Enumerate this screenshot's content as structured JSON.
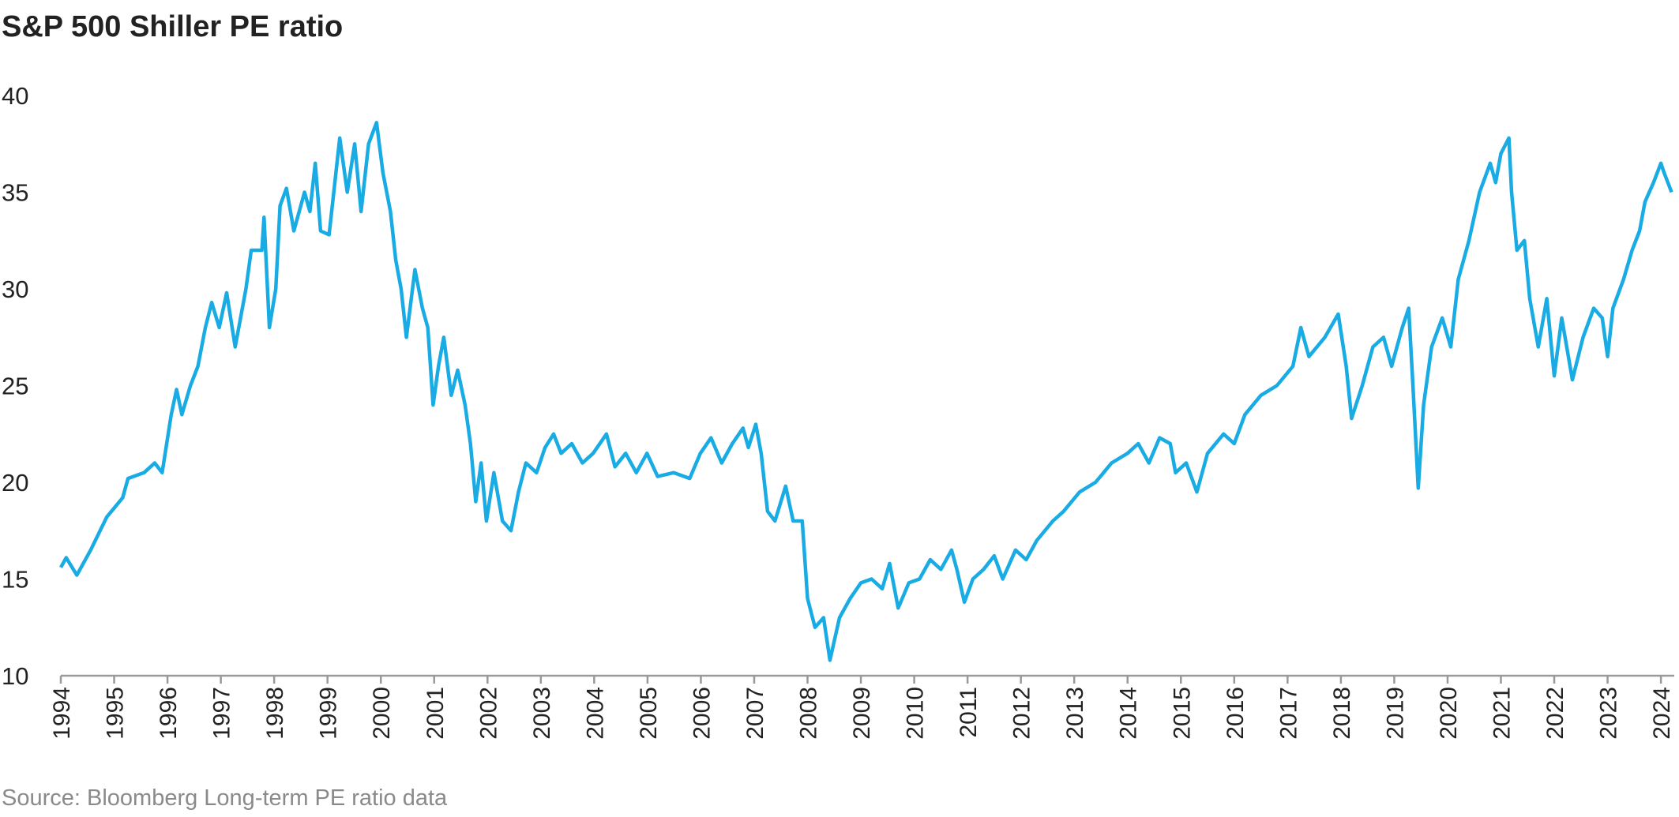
{
  "chart_data": {
    "type": "line",
    "title": "S&P 500 Shiller PE ratio",
    "source": "Source: Bloomberg Long-term PE ratio data",
    "x": [
      1994.0,
      1994.1,
      1994.3,
      1994.56,
      1994.86,
      1995.16,
      1995.26,
      1995.56,
      1995.76,
      1995.9,
      1996.07,
      1996.17,
      1996.27,
      1996.43,
      1996.57,
      1996.71,
      1996.83,
      1996.97,
      1997.11,
      1997.27,
      1997.47,
      1997.57,
      1997.77,
      1997.81,
      1997.91,
      1998.03,
      1998.11,
      1998.23,
      1998.37,
      1998.57,
      1998.67,
      1998.77,
      1998.87,
      1999.03,
      1999.23,
      1999.37,
      1999.51,
      1999.63,
      1999.77,
      1999.92,
      2000.04,
      2000.18,
      2000.28,
      2000.38,
      2000.48,
      2000.64,
      2000.78,
      2000.88,
      2000.98,
      2001.08,
      2001.18,
      2001.32,
      2001.44,
      2001.58,
      2001.68,
      2001.78,
      2001.88,
      2001.98,
      2002.12,
      2002.28,
      2002.44,
      2002.58,
      2002.72,
      2002.92,
      2003.08,
      2003.24,
      2003.38,
      2003.58,
      2003.78,
      2003.98,
      2004.23,
      2004.39,
      2004.59,
      2004.79,
      2004.99,
      2005.19,
      2005.49,
      2005.79,
      2005.99,
      2006.19,
      2006.39,
      2006.59,
      2006.79,
      2006.89,
      2007.03,
      2007.13,
      2007.25,
      2007.39,
      2007.59,
      2007.73,
      2007.9,
      2008.0,
      2008.14,
      2008.3,
      2008.42,
      2008.6,
      2008.8,
      2009.0,
      2009.2,
      2009.4,
      2009.54,
      2009.7,
      2009.9,
      2010.1,
      2010.3,
      2010.5,
      2010.7,
      2010.8,
      2010.94,
      2011.1,
      2011.3,
      2011.5,
      2011.66,
      2011.9,
      2012.1,
      2012.3,
      2012.6,
      2012.8,
      2013.1,
      2013.4,
      2013.7,
      2014.0,
      2014.2,
      2014.4,
      2014.6,
      2014.8,
      2014.9,
      2015.1,
      2015.3,
      2015.5,
      2015.8,
      2016.0,
      2016.2,
      2016.5,
      2016.8,
      2017.1,
      2017.25,
      2017.4,
      2017.7,
      2017.95,
      2018.1,
      2018.2,
      2018.4,
      2018.6,
      2018.8,
      2018.95,
      2019.15,
      2019.27,
      2019.35,
      2019.45,
      2019.55,
      2019.7,
      2019.9,
      2020.06,
      2020.2,
      2020.4,
      2020.6,
      2020.8,
      2020.9,
      2021.0,
      2021.15,
      2021.2,
      2021.3,
      2021.44,
      2021.54,
      2021.7,
      2021.86,
      2022.0,
      2022.14,
      2022.34,
      2022.54,
      2022.74,
      2022.9,
      2023.0,
      2023.1,
      2023.3,
      2023.46,
      2023.6,
      2023.7,
      2023.86,
      2024.0,
      2024.06,
      2024.2
    ],
    "series": [
      {
        "name": "Shiller PE",
        "color": "#19ace4",
        "values": [
          15.6,
          16.1,
          15.2,
          16.5,
          18.2,
          19.2,
          20.2,
          20.5,
          21.0,
          20.5,
          23.5,
          24.8,
          23.5,
          25.0,
          26.0,
          28.0,
          29.3,
          28.0,
          29.8,
          27.0,
          30.0,
          32.0,
          32.0,
          33.7,
          28.0,
          30.0,
          34.3,
          35.2,
          33.0,
          35.0,
          34.0,
          36.5,
          33.0,
          32.8,
          37.8,
          35.0,
          37.5,
          34.0,
          37.5,
          38.6,
          36.0,
          34.0,
          31.5,
          30.0,
          27.5,
          31.0,
          29.0,
          28.0,
          24.0,
          26.0,
          27.5,
          24.5,
          25.8,
          24.0,
          22.0,
          19.0,
          21.0,
          18.0,
          20.5,
          18.0,
          17.5,
          19.5,
          21.0,
          20.5,
          21.8,
          22.5,
          21.5,
          22.0,
          21.0,
          21.5,
          22.5,
          20.8,
          21.5,
          20.5,
          21.5,
          20.3,
          20.5,
          20.2,
          21.5,
          22.3,
          21.0,
          22.0,
          22.8,
          21.8,
          23.0,
          21.5,
          18.5,
          18.0,
          19.8,
          18.0,
          18.0,
          14.0,
          12.5,
          13.0,
          10.8,
          13.0,
          14.0,
          14.8,
          15.0,
          14.5,
          15.8,
          13.5,
          14.8,
          15.0,
          16.0,
          15.5,
          16.5,
          15.5,
          13.8,
          15.0,
          15.5,
          16.2,
          15.0,
          16.5,
          16.0,
          17.0,
          18.0,
          18.5,
          19.5,
          20.0,
          21.0,
          21.5,
          22.0,
          21.0,
          22.3,
          22.0,
          20.5,
          21.0,
          19.5,
          21.5,
          22.5,
          22.0,
          23.5,
          24.5,
          25.0,
          26.0,
          28.0,
          26.5,
          27.5,
          28.7,
          26.0,
          23.3,
          25.0,
          27.0,
          27.5,
          26.0,
          28.0,
          29.0,
          25.0,
          19.7,
          24.0,
          27.0,
          28.5,
          27.0,
          30.5,
          32.5,
          35.0,
          36.5,
          35.5,
          37.0,
          37.8,
          35.0,
          32.0,
          32.5,
          29.5,
          27.0,
          29.5,
          25.5,
          28.5,
          25.3,
          27.5,
          29.0,
          28.5,
          26.5,
          29.0,
          30.5,
          32.0,
          33.0,
          34.5,
          35.5,
          36.5,
          36.0,
          35.0
        ]
      }
    ],
    "xlim": [
      1994,
      2024.25
    ],
    "xticks": [
      1994,
      1995,
      1996,
      1997,
      1998,
      1999,
      2000,
      2001,
      2002,
      2003,
      2004,
      2005,
      2006,
      2007,
      2008,
      2009,
      2010,
      2011,
      2012,
      2013,
      2014,
      2015,
      2016,
      2017,
      2018,
      2019,
      2020,
      2021,
      2022,
      2023,
      2024
    ],
    "ylim": [
      10,
      40
    ],
    "yticks": [
      10,
      15,
      20,
      25,
      30,
      35,
      40
    ],
    "grid": false
  }
}
